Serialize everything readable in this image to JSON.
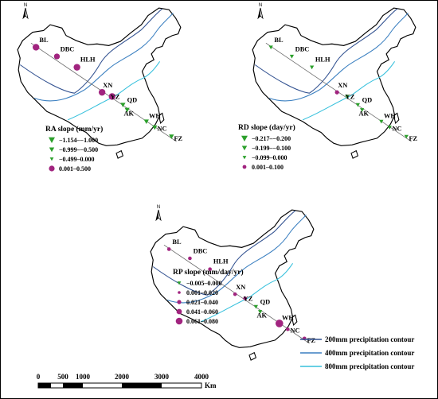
{
  "maps": [
    {
      "id": "ra",
      "legend_title": "RA slope (mm/yr)",
      "legend": [
        {
          "label": "−1.154–−1.000",
          "kind": "tri",
          "size": 4
        },
        {
          "label": "−0.999–−0.500",
          "kind": "tri",
          "size": 3.2
        },
        {
          "label": "−0.499–0.000",
          "kind": "tri",
          "size": 2.4
        },
        {
          "label": "0.001–0.500",
          "kind": "dot",
          "size": 3.6
        }
      ],
      "stations": [
        {
          "code": "BL",
          "kind": "dot",
          "size": 4
        },
        {
          "code": "DBC",
          "kind": "dot",
          "size": 3.5
        },
        {
          "code": "HLH",
          "kind": "dot",
          "size": 4
        },
        {
          "code": "XN",
          "kind": "dot",
          "size": 4
        },
        {
          "code": "YZ",
          "kind": "dot",
          "size": 4
        },
        {
          "code": "QD",
          "kind": "tri",
          "size": 3
        },
        {
          "code": "AK",
          "kind": "tri",
          "size": 3
        },
        {
          "code": "WH",
          "kind": "tri",
          "size": 3
        },
        {
          "code": "NC",
          "kind": "tri",
          "size": 3
        },
        {
          "code": "FZ",
          "kind": "tri",
          "size": 3
        }
      ]
    },
    {
      "id": "rd",
      "legend_title": "RD slope (day/yr)",
      "legend": [
        {
          "label": "−0.217–−0.200",
          "kind": "tri",
          "size": 4
        },
        {
          "label": "−0.199–−0.100",
          "kind": "tri",
          "size": 3.2
        },
        {
          "label": "−0.099–0.000",
          "kind": "tri",
          "size": 2.4
        },
        {
          "label": "0.001–0.100",
          "kind": "dot",
          "size": 2.4
        }
      ],
      "stations": [
        {
          "code": "BL",
          "kind": "tri",
          "size": 2.5
        },
        {
          "code": "DBC",
          "kind": "tri",
          "size": 2.5
        },
        {
          "code": "HLH",
          "kind": "tri",
          "size": 2.5
        },
        {
          "code": "XN",
          "kind": "dot",
          "size": 2.5
        },
        {
          "code": "YZ",
          "kind": "tri",
          "size": 2.5
        },
        {
          "code": "QD",
          "kind": "tri",
          "size": 2.5
        },
        {
          "code": "AK",
          "kind": "tri",
          "size": 2.5
        },
        {
          "code": "WH",
          "kind": "tri",
          "size": 2.5
        },
        {
          "code": "NC",
          "kind": "tri",
          "size": 2.5
        },
        {
          "code": "FZ",
          "kind": "tri",
          "size": 2.5
        }
      ]
    },
    {
      "id": "rp",
      "legend_title": "RP slope (mm/day/yr)",
      "legend": [
        {
          "label": "−0.005–0.000",
          "kind": "tri",
          "size": 2.4
        },
        {
          "label": "0.001–0.020",
          "kind": "dot",
          "size": 1.8
        },
        {
          "label": "0.021–0.040",
          "kind": "dot",
          "size": 2.6
        },
        {
          "label": "0.041–0.060",
          "kind": "dot",
          "size": 3.4
        },
        {
          "label": "0.061–0.080",
          "kind": "dot",
          "size": 4.3
        }
      ],
      "stations": [
        {
          "code": "BL",
          "kind": "dot",
          "size": 2.2
        },
        {
          "code": "DBC",
          "kind": "dot",
          "size": 2.2
        },
        {
          "code": "HLH",
          "kind": "dot",
          "size": 2.2
        },
        {
          "code": "XN",
          "kind": "dot",
          "size": 2.2
        },
        {
          "code": "YZ",
          "kind": "dot",
          "size": 2.2
        },
        {
          "code": "QD",
          "kind": "tri",
          "size": 2.5
        },
        {
          "code": "AK",
          "kind": "tri",
          "size": 2.5
        },
        {
          "code": "WH",
          "kind": "dot",
          "size": 4.6
        },
        {
          "code": "NC",
          "kind": "dot",
          "size": 2.2
        },
        {
          "code": "FZ",
          "kind": "dot",
          "size": 2.2
        }
      ]
    }
  ],
  "north_label": "N",
  "contours": [
    {
      "label": "200mm precipitation contour",
      "color": "#2f4f8f"
    },
    {
      "label": "400mm precipitation contour",
      "color": "#3a7fc0"
    },
    {
      "label": "800mm precipitation contour",
      "color": "#36c0dc"
    }
  ],
  "scale": {
    "ticks": [
      "0",
      "500",
      "1000",
      "2000",
      "3000",
      "4000"
    ],
    "unit": "Km"
  },
  "colors": {
    "dot": "#a1247f",
    "tri": "#2ca02c",
    "border": "#000000"
  }
}
